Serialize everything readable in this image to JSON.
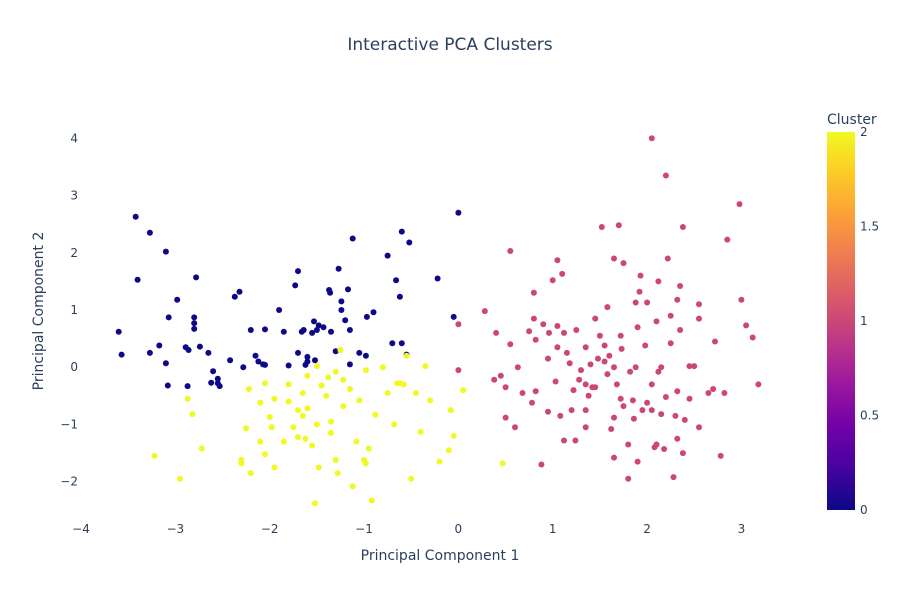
{
  "chart_data": {
    "type": "scatter",
    "title": "Interactive PCA Clusters",
    "xlabel": "Principal Component 1",
    "ylabel": "Principal Component 2",
    "xlim": [
      -4,
      3.25
    ],
    "ylim": [
      -2.6,
      4.25
    ],
    "xticks": [
      -4,
      -3,
      -2,
      -1,
      0,
      1,
      2,
      3
    ],
    "yticks": [
      -2,
      -1,
      0,
      1,
      2,
      3,
      4
    ],
    "xtick_labels": [
      "−4",
      "−3",
      "−2",
      "−1",
      "0",
      "1",
      "2",
      "3"
    ],
    "ytick_labels": [
      "−2",
      "−1",
      "0",
      "1",
      "2",
      "3",
      "4"
    ],
    "grid": false,
    "colorbar": {
      "title": "Cluster",
      "min": 0,
      "max": 2,
      "ticks": [
        0,
        0.5,
        1,
        1.5,
        2
      ],
      "tick_labels": [
        "0",
        "0.5",
        "1",
        "1.5",
        "2"
      ],
      "colorscale": [
        "#0d0887",
        "#46039f",
        "#7201a8",
        "#9c179e",
        "#bd3786",
        "#d8576b",
        "#ed7953",
        "#fb9f3a",
        "#fdca26",
        "#f0f921"
      ]
    },
    "series": [
      {
        "cluster": 0,
        "color": "#0d0887",
        "points": [
          [
            -3.6,
            0.62
          ],
          [
            -3.57,
            0.22
          ],
          [
            -3.42,
            2.63
          ],
          [
            -3.4,
            1.53
          ],
          [
            -3.27,
            2.35
          ],
          [
            -3.27,
            0.25
          ],
          [
            -3.17,
            0.38
          ],
          [
            -3.1,
            2.02
          ],
          [
            -3.1,
            0.07
          ],
          [
            -3.08,
            -0.32
          ],
          [
            -3.07,
            0.87
          ],
          [
            -2.98,
            1.18
          ],
          [
            -2.89,
            0.35
          ],
          [
            -2.87,
            -0.33
          ],
          [
            -2.86,
            0.3
          ],
          [
            -2.8,
            0.87
          ],
          [
            -2.8,
            0.77
          ],
          [
            -2.8,
            0.67
          ],
          [
            -2.78,
            1.57
          ],
          [
            -2.74,
            0.36
          ],
          [
            -2.65,
            0.25
          ],
          [
            -2.62,
            -0.27
          ],
          [
            -2.6,
            -0.07
          ],
          [
            -2.55,
            -0.2
          ],
          [
            -2.55,
            -0.28
          ],
          [
            -2.53,
            -0.33
          ],
          [
            -2.42,
            0.12
          ],
          [
            -2.37,
            1.23
          ],
          [
            -2.32,
            1.32
          ],
          [
            -2.28,
            0.0
          ],
          [
            -2.2,
            0.65
          ],
          [
            -2.15,
            0.2
          ],
          [
            -2.12,
            0.1
          ],
          [
            -2.07,
            0.05
          ],
          [
            -2.05,
            0.04
          ],
          [
            -2.05,
            0.66
          ],
          [
            -1.9,
            1.0
          ],
          [
            -1.85,
            0.62
          ],
          [
            -1.8,
            0.03
          ],
          [
            -1.73,
            1.43
          ],
          [
            -1.7,
            1.68
          ],
          [
            -1.7,
            0.25
          ],
          [
            -1.66,
            0.62
          ],
          [
            -1.64,
            0.65
          ],
          [
            -1.62,
            0.04
          ],
          [
            -1.6,
            0.18
          ],
          [
            -1.6,
            0.1
          ],
          [
            -1.55,
            0.6
          ],
          [
            -1.53,
            0.8
          ],
          [
            -1.52,
            0.12
          ],
          [
            -1.5,
            0.65
          ],
          [
            -1.48,
            0.73
          ],
          [
            -1.43,
            0.7
          ],
          [
            -1.37,
            1.35
          ],
          [
            -1.36,
            1.3
          ],
          [
            -1.35,
            0.62
          ],
          [
            -1.3,
            0.28
          ],
          [
            -1.27,
            1.72
          ],
          [
            -1.24,
            1.15
          ],
          [
            -1.24,
            1.0
          ],
          [
            -1.2,
            0.82
          ],
          [
            -1.17,
            1.36
          ],
          [
            -1.15,
            0.65
          ],
          [
            -1.12,
            2.25
          ],
          [
            -1.05,
            0.25
          ],
          [
            -0.98,
            0.2
          ],
          [
            -0.97,
            0.88
          ],
          [
            -0.9,
            0.96
          ],
          [
            -0.75,
            1.95
          ],
          [
            -0.7,
            0.42
          ],
          [
            -0.66,
            1.52
          ],
          [
            -0.6,
            2.37
          ],
          [
            -0.6,
            0.42
          ],
          [
            -0.52,
            2.18
          ],
          [
            -0.22,
            1.55
          ],
          [
            -0.05,
            0.88
          ],
          [
            0,
            2.7
          ],
          [
            -0.55,
            0.22
          ],
          [
            -1.15,
            0.05
          ],
          [
            -0.62,
            1.23
          ]
        ]
      },
      {
        "cluster": 1,
        "color": "#cc4778",
        "points": [
          [
            0.0,
            0.75
          ],
          [
            0.0,
            -0.05
          ],
          [
            0.28,
            0.98
          ],
          [
            0.4,
            0.6
          ],
          [
            0.38,
            -0.22
          ],
          [
            0.5,
            -0.35
          ],
          [
            0.5,
            -0.88
          ],
          [
            0.55,
            2.03
          ],
          [
            0.55,
            0.4
          ],
          [
            0.6,
            -1.05
          ],
          [
            0.63,
            0.0
          ],
          [
            0.75,
            0.63
          ],
          [
            0.78,
            -0.62
          ],
          [
            0.8,
            0.85
          ],
          [
            0.8,
            1.3
          ],
          [
            0.82,
            0.48
          ],
          [
            0.82,
            -0.42
          ],
          [
            0.88,
            -1.7
          ],
          [
            0.9,
            0.75
          ],
          [
            0.95,
            -0.78
          ],
          [
            0.95,
            0.15
          ],
          [
            0.96,
            0.6
          ],
          [
            1.0,
            1.52
          ],
          [
            1.03,
            -0.25
          ],
          [
            1.05,
            1.87
          ],
          [
            1.05,
            0.72
          ],
          [
            1.08,
            -0.85
          ],
          [
            1.1,
            1.63
          ],
          [
            1.12,
            0.6
          ],
          [
            1.12,
            -1.28
          ],
          [
            1.15,
            0.25
          ],
          [
            1.18,
            0.07
          ],
          [
            1.22,
            -0.4
          ],
          [
            1.24,
            -1.28
          ],
          [
            1.25,
            0.65
          ],
          [
            1.28,
            -0.22
          ],
          [
            1.3,
            -0.05
          ],
          [
            1.35,
            -0.3
          ],
          [
            1.35,
            0.35
          ],
          [
            1.35,
            -0.75
          ],
          [
            1.38,
            -0.5
          ],
          [
            1.4,
            0.05
          ],
          [
            1.42,
            -0.35
          ],
          [
            1.45,
            -0.35
          ],
          [
            1.48,
            0.15
          ],
          [
            1.5,
            0.55
          ],
          [
            1.52,
            2.45
          ],
          [
            1.55,
            0.38
          ],
          [
            1.58,
            1.05
          ],
          [
            1.58,
            -0.12
          ],
          [
            1.6,
            0.2
          ],
          [
            1.62,
            -1.08
          ],
          [
            1.65,
            0.0
          ],
          [
            1.65,
            -0.88
          ],
          [
            1.68,
            -0.3
          ],
          [
            1.7,
            2.48
          ],
          [
            1.72,
            0.55
          ],
          [
            1.73,
            0.32
          ],
          [
            1.75,
            -0.68
          ],
          [
            1.8,
            -1.35
          ],
          [
            1.8,
            -1.95
          ],
          [
            1.82,
            -0.08
          ],
          [
            1.85,
            -0.58
          ],
          [
            1.86,
            -0.9
          ],
          [
            1.88,
            0.0
          ],
          [
            1.9,
            0.7
          ],
          [
            1.92,
            1.32
          ],
          [
            1.93,
            1.6
          ],
          [
            1.95,
            -0.75
          ],
          [
            1.98,
            0.38
          ],
          [
            2.0,
            -0.62
          ],
          [
            2.05,
            -0.3
          ],
          [
            2.08,
            -1.4
          ],
          [
            2.1,
            -1.35
          ],
          [
            2.1,
            0.8
          ],
          [
            2.12,
            1.5
          ],
          [
            2.15,
            0.0
          ],
          [
            2.18,
            -1.43
          ],
          [
            2.2,
            -0.52
          ],
          [
            2.22,
            1.9
          ],
          [
            2.25,
            0.42
          ],
          [
            2.28,
            -1.92
          ],
          [
            2.3,
            -0.85
          ],
          [
            2.32,
            -1.25
          ],
          [
            2.35,
            0.65
          ],
          [
            2.38,
            -1.5
          ],
          [
            2.4,
            -0.92
          ],
          [
            2.45,
            -0.55
          ],
          [
            2.5,
            0.02
          ],
          [
            2.55,
            0.85
          ],
          [
            2.55,
            -1.05
          ],
          [
            2.65,
            -0.45
          ],
          [
            2.7,
            -0.38
          ],
          [
            2.72,
            0.45
          ],
          [
            2.78,
            -1.55
          ],
          [
            2.82,
            -0.45
          ],
          [
            2.85,
            2.23
          ],
          [
            2.98,
            2.85
          ],
          [
            3.0,
            1.18
          ],
          [
            3.05,
            0.73
          ],
          [
            3.12,
            0.52
          ],
          [
            3.18,
            -0.3
          ],
          [
            2.35,
            1.42
          ],
          [
            2.45,
            0.02
          ],
          [
            2.05,
            -0.75
          ],
          [
            1.65,
            1.9
          ],
          [
            1.75,
            1.82
          ],
          [
            2.0,
            1.13
          ],
          [
            2.2,
            3.35
          ],
          [
            2.05,
            4.0
          ],
          [
            2.38,
            2.45
          ],
          [
            2.55,
            1.1
          ],
          [
            2.25,
            0.9
          ],
          [
            2.15,
            -0.82
          ],
          [
            1.9,
            -1.65
          ],
          [
            1.65,
            -1.58
          ],
          [
            1.35,
            -1.05
          ],
          [
            1.2,
            -0.75
          ],
          [
            1.45,
            0.85
          ],
          [
            1.55,
            0.1
          ],
          [
            1.72,
            -0.55
          ],
          [
            2.32,
            -0.42
          ],
          [
            0.45,
            -0.15
          ],
          [
            0.68,
            -0.45
          ],
          [
            1.05,
            0.35
          ],
          [
            1.88,
            1.13
          ],
          [
            2.32,
            1.18
          ],
          [
            2.12,
            -0.08
          ]
        ]
      },
      {
        "cluster": 2,
        "color": "#f0f921",
        "points": [
          [
            -3.22,
            -1.55
          ],
          [
            -2.95,
            -1.95
          ],
          [
            -2.87,
            -0.55
          ],
          [
            -2.82,
            -0.82
          ],
          [
            -2.72,
            -1.42
          ],
          [
            -2.3,
            -1.62
          ],
          [
            -2.3,
            -1.68
          ],
          [
            -2.25,
            -1.07
          ],
          [
            -2.22,
            -0.38
          ],
          [
            -2.2,
            -1.85
          ],
          [
            -2.1,
            -1.3
          ],
          [
            -2.05,
            -0.28
          ],
          [
            -2.0,
            -0.87
          ],
          [
            -1.98,
            -1.05
          ],
          [
            -1.95,
            -1.75
          ],
          [
            -1.95,
            -0.55
          ],
          [
            -1.85,
            -1.3
          ],
          [
            -1.8,
            -0.3
          ],
          [
            -1.75,
            -1.05
          ],
          [
            -1.7,
            -0.75
          ],
          [
            -1.65,
            -0.85
          ],
          [
            -1.62,
            -1.25
          ],
          [
            -1.6,
            -0.72
          ],
          [
            -1.55,
            -1.37
          ],
          [
            -1.52,
            -2.38
          ],
          [
            -1.5,
            -1.0
          ],
          [
            -1.45,
            -0.32
          ],
          [
            -1.4,
            -0.5
          ],
          [
            -1.38,
            -0.18
          ],
          [
            -1.35,
            -0.95
          ],
          [
            -1.3,
            -1.62
          ],
          [
            -1.28,
            -1.85
          ],
          [
            -1.22,
            -0.68
          ],
          [
            -1.15,
            -0.38
          ],
          [
            -1.12,
            -2.08
          ],
          [
            -1.08,
            -1.3
          ],
          [
            -1.05,
            -0.58
          ],
          [
            -1.0,
            -1.62
          ],
          [
            -0.98,
            -1.68
          ],
          [
            -0.95,
            -1.42
          ],
          [
            -0.92,
            -2.33
          ],
          [
            -0.88,
            -0.83
          ],
          [
            -0.8,
            0.0
          ],
          [
            -0.75,
            -0.45
          ],
          [
            -0.68,
            -1.0
          ],
          [
            -0.62,
            -0.28
          ],
          [
            -0.58,
            -0.3
          ],
          [
            -0.55,
            0.2
          ],
          [
            -0.5,
            -1.95
          ],
          [
            -0.45,
            -0.45
          ],
          [
            -0.4,
            -1.13
          ],
          [
            -0.35,
            0.02
          ],
          [
            -0.3,
            -0.58
          ],
          [
            -0.2,
            -1.65
          ],
          [
            -0.1,
            -1.45
          ],
          [
            -0.05,
            -1.2
          ],
          [
            0.05,
            -0.4
          ],
          [
            -0.08,
            -0.75
          ],
          [
            -1.22,
            -0.22
          ],
          [
            -1.65,
            -0.45
          ],
          [
            -1.8,
            -0.6
          ],
          [
            -2.1,
            -0.62
          ],
          [
            -1.35,
            -1.15
          ],
          [
            -1.48,
            -1.75
          ],
          [
            -1.3,
            -0.08
          ],
          [
            -0.98,
            -0.05
          ],
          [
            -1.25,
            0.3
          ],
          [
            -0.65,
            -0.28
          ],
          [
            -1.5,
            0.02
          ],
          [
            -1.6,
            -0.15
          ],
          [
            -2.05,
            -1.52
          ],
          [
            -1.7,
            -1.22
          ],
          [
            0.47,
            -1.68
          ]
        ]
      }
    ]
  }
}
